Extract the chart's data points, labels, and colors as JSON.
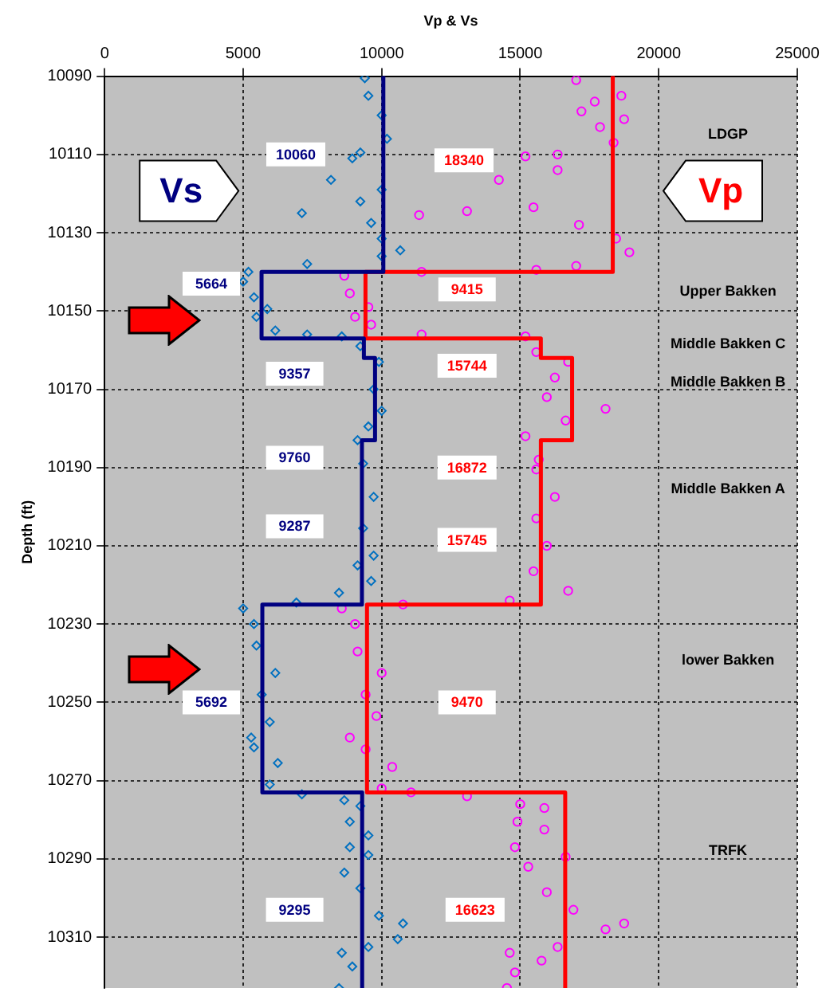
{
  "chart_data": {
    "type": "scatter",
    "xlabel": "Vp & Vs",
    "ylabel": "Depth (ft)",
    "xlim": [
      0,
      25000
    ],
    "ylim": [
      10323,
      10090
    ],
    "xticks": [
      0,
      5000,
      10000,
      15000,
      20000,
      25000
    ],
    "yticks": [
      10090,
      10110,
      10130,
      10150,
      10170,
      10190,
      10210,
      10230,
      10250,
      10270,
      10290,
      10310
    ],
    "grid": true,
    "series": [
      {
        "name": "Vs",
        "type": "line",
        "color": "#000080",
        "x": [
          10060,
          10060,
          5664,
          5664,
          9357,
          9357,
          9760,
          9760,
          9287,
          9287,
          5692,
          5692,
          9295,
          9295
        ],
        "values": [
          10090,
          10140,
          10140,
          10157,
          10157,
          10162,
          10162,
          10183,
          10183,
          10225,
          10225,
          10273,
          10273,
          10323
        ]
      },
      {
        "name": "Vp",
        "type": "line",
        "color": "#ff0000",
        "x": [
          18340,
          18340,
          9415,
          9415,
          15744,
          15744,
          16872,
          16872,
          15745,
          15745,
          9470,
          9470,
          16623,
          16623
        ],
        "values": [
          10090,
          10140,
          10140,
          10157,
          10157,
          10162,
          10162,
          10183,
          10183,
          10225,
          10225,
          10273,
          10273,
          10323
        ]
      },
      {
        "type": "scatter",
        "marker": "diamond",
        "color": "#0070c0",
        "x": [
          9390,
          9520,
          10000,
          10190,
          9230,
          8940,
          8170,
          9230,
          10000,
          7120,
          9620,
          10000,
          10670,
          10000,
          7310,
          5190,
          5000,
          5390,
          5870,
          5480,
          6160,
          7310,
          8560,
          9230,
          9900,
          9710,
          10000,
          9520,
          9130,
          9330,
          9710,
          9330,
          9710,
          9130,
          9620,
          8460,
          6920,
          5000,
          5390,
          5480,
          6160,
          5670,
          5960,
          5290,
          5390,
          6250,
          5960,
          7120,
          8650,
          9230,
          8850,
          9520,
          8850,
          9520,
          8650,
          9230,
          9900,
          10770,
          10580,
          9520,
          8560,
          8940,
          8460
        ],
        "values": [
          10090.5,
          10095,
          10100,
          10106,
          10109.5,
          10111,
          10116.5,
          10122,
          10119,
          10125,
          10127.5,
          10131.5,
          10134.5,
          10136,
          10138,
          10140,
          10142.5,
          10146.5,
          10149.5,
          10151.5,
          10155,
          10156,
          10156.5,
          10159,
          10163,
          10170,
          10175.5,
          10179.5,
          10183,
          10189,
          10197.5,
          10205.5,
          10212.5,
          10215,
          10219,
          10222,
          10224.5,
          10226,
          10230,
          10235.5,
          10242.5,
          10248,
          10255,
          10259,
          10261.5,
          10265.5,
          10271,
          10273.5,
          10275,
          10276.5,
          10280.5,
          10284,
          10287,
          10289,
          10293.5,
          10297.5,
          10304.5,
          10306.5,
          10310.5,
          10312.5,
          10314,
          10317.5,
          10323
        ]
      },
      {
        "type": "scatter",
        "marker": "circle",
        "color": "#ff00ff",
        "x": [
          17020,
          17690,
          18650,
          17210,
          18750,
          17880,
          18370,
          16350,
          15190,
          14230,
          16350,
          11350,
          13080,
          15480,
          17120,
          18460,
          18940,
          17020,
          15580,
          11440,
          8650,
          8850,
          9520,
          9040,
          9620,
          11440,
          15190,
          15580,
          16730,
          16250,
          15960,
          18080,
          16640,
          15190,
          15670,
          15580,
          16250,
          15580,
          15960,
          15480,
          16730,
          14620,
          10770,
          8560,
          9040,
          9130,
          10000,
          9420,
          9810,
          8850,
          9420,
          10380,
          10000,
          11060,
          13080,
          15000,
          15870,
          14900,
          15870,
          14810,
          16640,
          15290,
          15960,
          16920,
          18080,
          18750,
          16350,
          14620,
          15770,
          14810,
          14520
        ],
        "values": [
          10091,
          10096.5,
          10095,
          10099,
          10101,
          10103,
          10107,
          10110,
          10110.5,
          10116.5,
          10114,
          10125.5,
          10124.5,
          10123.5,
          10128,
          10131.5,
          10135,
          10138.5,
          10139.5,
          10140,
          10141,
          10145.5,
          10149,
          10151.5,
          10153.5,
          10156,
          10156.5,
          10160.5,
          10163,
          10167,
          10172,
          10175,
          10178,
          10182,
          10188,
          10190.5,
          10197.5,
          10203,
          10210,
          10216.5,
          10221.5,
          10224,
          10225,
          10226,
          10230,
          10237,
          10242.5,
          10248,
          10253.5,
          10259,
          10262,
          10266.5,
          10272,
          10273,
          10274,
          10276,
          10277,
          10280.5,
          10282.5,
          10287,
          10289.5,
          10292,
          10298.5,
          10303,
          10308,
          10306.5,
          10312.5,
          10314,
          10316,
          10319,
          10323
        ]
      }
    ],
    "annotations": [
      {
        "text": "10060",
        "x": 6900,
        "y": 10110
      },
      {
        "text": "18340",
        "x": 12970,
        "y": 10111.5
      },
      {
        "text": "5664",
        "x": 3850,
        "y": 10143
      },
      {
        "text": "9415",
        "x": 13080,
        "y": 10144.5
      },
      {
        "text": "9357",
        "x": 6860,
        "y": 10166
      },
      {
        "text": "15744",
        "x": 13080,
        "y": 10164
      },
      {
        "text": "9760",
        "x": 6860,
        "y": 10187.5
      },
      {
        "text": "16872",
        "x": 13080,
        "y": 10190
      },
      {
        "text": "9287",
        "x": 6860,
        "y": 10205
      },
      {
        "text": "15745",
        "x": 13080,
        "y": 10208.5
      },
      {
        "text": "5692",
        "x": 3850,
        "y": 10250
      },
      {
        "text": "9470",
        "x": 13080,
        "y": 10250
      },
      {
        "text": "9295",
        "x": 6860,
        "y": 10303
      },
      {
        "text": "16623",
        "x": 13370,
        "y": 10303
      },
      "LDGP",
      "Upper Bakken",
      "Middle Bakken C",
      "Middle Bakken B",
      "Middle Bakken A",
      "lower Bakken",
      "TRFK"
    ]
  }
}
